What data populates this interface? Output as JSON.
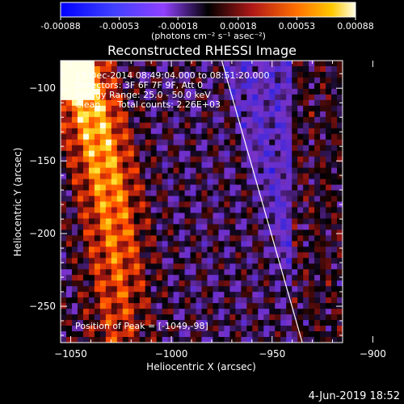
{
  "colorbar": {
    "tick_labels": [
      "-0.00088",
      "-0.00053",
      "-0.00018",
      "0.00018",
      "0.00053",
      "0.00088"
    ],
    "unit_label": "(photons cm⁻² s⁻¹ asec⁻²)",
    "range": [
      -0.00088,
      0.00088
    ]
  },
  "chart_data": {
    "type": "heatmap",
    "title": "Reconstructed RHESSI Image",
    "xlabel": "Heliocentric X (arcsec)",
    "ylabel": "Heliocentric Y (arcsec)",
    "xlim": [
      -1055,
      -915
    ],
    "ylim": [
      -275,
      -81
    ],
    "x_ticks": [
      -1050,
      -1000,
      -950,
      -900
    ],
    "y_ticks": [
      -250,
      -200,
      -150,
      -100
    ],
    "limb_line": {
      "x": [
        -975,
        -935
      ],
      "y": [
        -81,
        -275
      ]
    },
    "peak": {
      "x": -1049,
      "y": -98
    },
    "annotations": {
      "time_range": "13-Dec-2014 08:49:04.000 to 08:51:20.000",
      "detectors": "Detectors: 3F 6F 7F 9F, Att 0",
      "energy": "Energy Range: 25.0 - 50.0 keV",
      "method": "Clean      Total counts: 2.26E+03",
      "peak_label": "Position of Peak = [-1049,-98]"
    }
  },
  "footer": {
    "date": "4-Jun-2019 18:52"
  }
}
